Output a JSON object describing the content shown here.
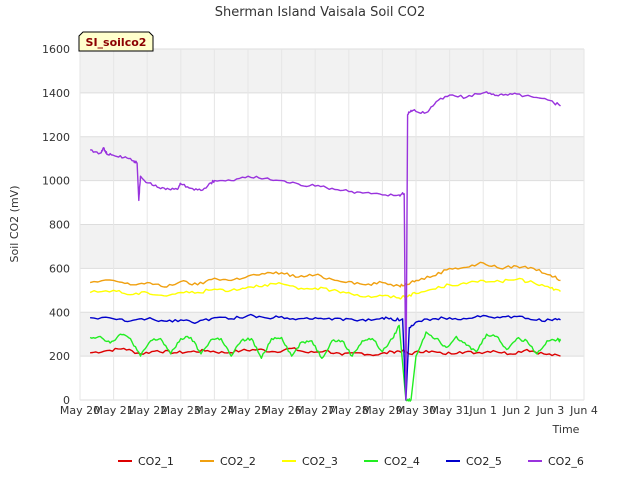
{
  "chart_data": {
    "type": "line",
    "title": "Sherman Island Vaisala Soil CO2",
    "tag": "SI_soilco2",
    "xlabel": "Time",
    "ylabel": "Soil CO2 (mV)",
    "ylim": [
      0,
      1600
    ],
    "yticks": [
      0,
      200,
      400,
      600,
      800,
      1000,
      1200,
      1400,
      1600
    ],
    "xlim": [
      0,
      15
    ],
    "xticks": [
      {
        "pos": 0,
        "label": "May 20"
      },
      {
        "pos": 1,
        "label": "May 21"
      },
      {
        "pos": 2,
        "label": "May 22"
      },
      {
        "pos": 3,
        "label": "May 23"
      },
      {
        "pos": 4,
        "label": "May 24"
      },
      {
        "pos": 5,
        "label": "May 25"
      },
      {
        "pos": 6,
        "label": "May 26"
      },
      {
        "pos": 7,
        "label": "May 27"
      },
      {
        "pos": 8,
        "label": "May 28"
      },
      {
        "pos": 9,
        "label": "May 29"
      },
      {
        "pos": 10,
        "label": "May 30"
      },
      {
        "pos": 11,
        "label": "May 31"
      },
      {
        "pos": 12,
        "label": "Jun 1"
      },
      {
        "pos": 13,
        "label": "Jun 2"
      },
      {
        "pos": 14,
        "label": "Jun 3"
      },
      {
        "pos": 15,
        "label": "Jun 4"
      }
    ],
    "grid": true,
    "legend_position": "bottom",
    "series": [
      {
        "name": "CO2_1",
        "color": "#dd0000",
        "x": [
          0.3,
          0.8,
          1.3,
          1.8,
          2.3,
          2.8,
          3.3,
          3.8,
          4.3,
          4.8,
          5.3,
          5.8,
          6.3,
          6.8,
          7.3,
          7.8,
          8.3,
          8.8,
          9.3,
          9.6,
          9.8,
          10.3,
          10.8,
          11.3,
          11.8,
          12.3,
          12.8,
          13.3,
          13.8,
          14.3
        ],
        "y": [
          215,
          225,
          235,
          210,
          225,
          215,
          220,
          225,
          215,
          225,
          230,
          220,
          235,
          215,
          225,
          205,
          215,
          205,
          220,
          225,
          210,
          225,
          210,
          220,
          215,
          225,
          210,
          230,
          210,
          200
        ]
      },
      {
        "name": "CO2_2",
        "color": "#f0a010",
        "x": [
          0.3,
          1.0,
          1.5,
          2.0,
          2.5,
          3.0,
          3.5,
          4.0,
          4.5,
          5.0,
          5.5,
          6.0,
          6.5,
          7.0,
          7.5,
          8.0,
          8.5,
          9.0,
          9.5,
          9.7,
          10.0,
          10.5,
          11.0,
          11.5,
          12.0,
          12.5,
          13.0,
          13.5,
          14.0,
          14.3
        ],
        "y": [
          535,
          545,
          525,
          535,
          515,
          540,
          525,
          555,
          545,
          565,
          575,
          580,
          560,
          570,
          550,
          540,
          525,
          535,
          520,
          530,
          545,
          565,
          600,
          605,
          625,
          600,
          610,
          600,
          570,
          545
        ]
      },
      {
        "name": "CO2_3",
        "color": "#ffff00",
        "x": [
          0.3,
          1.0,
          1.5,
          2.0,
          2.5,
          3.0,
          3.5,
          4.0,
          4.5,
          5.0,
          5.5,
          6.0,
          6.5,
          7.0,
          7.5,
          8.0,
          8.5,
          9.0,
          9.5,
          9.7,
          10.0,
          10.5,
          11.0,
          11.5,
          12.0,
          12.5,
          13.0,
          13.5,
          14.0,
          14.3
        ],
        "y": [
          490,
          500,
          480,
          490,
          475,
          490,
          490,
          505,
          500,
          515,
          525,
          530,
          505,
          510,
          500,
          490,
          470,
          475,
          465,
          475,
          485,
          505,
          525,
          530,
          545,
          540,
          550,
          535,
          510,
          495
        ]
      },
      {
        "name": "CO2_4",
        "color": "#22ee22",
        "x": [
          0.3,
          0.6,
          0.9,
          1.2,
          1.5,
          1.8,
          2.1,
          2.4,
          2.7,
          3.0,
          3.3,
          3.6,
          3.9,
          4.2,
          4.5,
          4.8,
          5.1,
          5.4,
          5.7,
          6.0,
          6.3,
          6.6,
          6.9,
          7.2,
          7.5,
          7.8,
          8.1,
          8.4,
          8.7,
          9.0,
          9.3,
          9.5,
          9.7,
          9.85,
          10.0,
          10.3,
          10.6,
          10.9,
          11.2,
          11.5,
          11.8,
          12.1,
          12.4,
          12.7,
          13.0,
          13.3,
          13.6,
          13.9,
          14.2,
          14.3
        ],
        "y": [
          285,
          290,
          260,
          300,
          280,
          200,
          270,
          280,
          210,
          280,
          285,
          210,
          275,
          280,
          200,
          270,
          280,
          190,
          280,
          285,
          200,
          265,
          270,
          190,
          270,
          270,
          200,
          270,
          280,
          220,
          280,
          340,
          0,
          0,
          200,
          310,
          280,
          240,
          290,
          250,
          220,
          300,
          290,
          230,
          280,
          270,
          210,
          270,
          275,
          270
        ]
      },
      {
        "name": "CO2_5",
        "color": "#0000cc",
        "x": [
          0.3,
          1.0,
          1.5,
          2.0,
          2.5,
          3.0,
          3.5,
          4.0,
          4.5,
          5.0,
          5.5,
          6.0,
          6.5,
          7.0,
          7.5,
          8.0,
          8.5,
          9.0,
          9.3,
          9.6,
          9.7,
          9.8,
          10.0,
          10.5,
          11.0,
          11.5,
          12.0,
          12.5,
          13.0,
          13.5,
          14.0,
          14.3
        ],
        "y": [
          375,
          370,
          360,
          370,
          360,
          365,
          355,
          375,
          370,
          385,
          375,
          380,
          370,
          375,
          365,
          370,
          360,
          375,
          365,
          370,
          0,
          330,
          355,
          370,
          375,
          370,
          385,
          375,
          380,
          365,
          365,
          365
        ]
      },
      {
        "name": "CO2_6",
        "color": "#9933dd",
        "x": [
          0.3,
          0.6,
          0.7,
          0.8,
          1.0,
          1.3,
          1.6,
          1.7,
          1.75,
          1.8,
          2.0,
          2.3,
          2.6,
          2.9,
          3.0,
          3.3,
          3.6,
          3.9,
          4.0,
          4.5,
          5.0,
          5.5,
          6.0,
          6.5,
          7.0,
          7.5,
          8.0,
          8.5,
          9.0,
          9.5,
          9.65,
          9.7,
          9.75,
          9.85,
          10.0,
          10.3,
          10.6,
          11.0,
          11.5,
          12.0,
          12.3,
          12.6,
          13.0,
          13.5,
          14.0,
          14.3
        ],
        "y": [
          1140,
          1125,
          1150,
          1120,
          1115,
          1105,
          1090,
          1080,
          910,
          1020,
          990,
          970,
          965,
          960,
          985,
          965,
          955,
          990,
          1000,
          1000,
          1020,
          1010,
          1000,
          985,
          975,
          965,
          950,
          945,
          935,
          935,
          940,
          0,
          1300,
          1320,
          1315,
          1310,
          1360,
          1390,
          1380,
          1400,
          1395,
          1390,
          1395,
          1380,
          1365,
          1340
        ]
      }
    ]
  }
}
